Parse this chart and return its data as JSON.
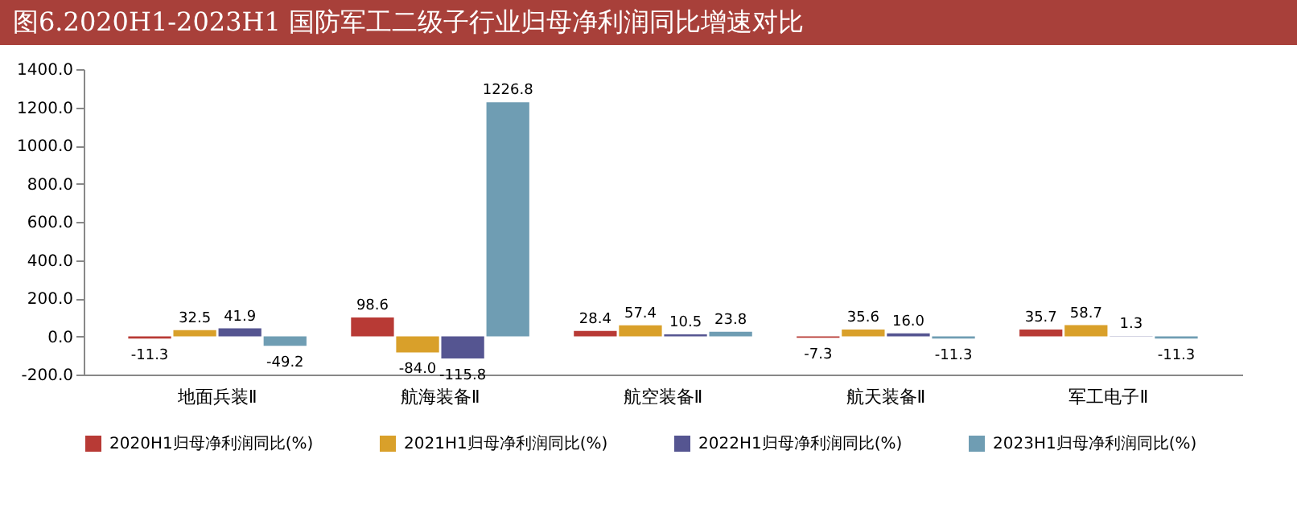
{
  "chart_data": {
    "type": "bar",
    "title": "图6.2020H1-2023H1 国防军工二级子行业归母净利润同比增速对比",
    "categories": [
      "地面兵装Ⅱ",
      "航海装备Ⅱ",
      "航空装备Ⅱ",
      "航天装备Ⅱ",
      "军工电子Ⅱ"
    ],
    "series": [
      {
        "name": "2020H1归母净利润同比(%)",
        "color": "#b83a35",
        "values": [
          -11.3,
          98.6,
          28.4,
          -7.3,
          35.7
        ],
        "value_labels": [
          "-11.3",
          "98.6",
          "28.4",
          "-7.3",
          "35.7"
        ]
      },
      {
        "name": "2021H1归母净利润同比(%)",
        "color": "#d9a02a",
        "values": [
          32.5,
          -84.0,
          57.4,
          35.6,
          58.7
        ],
        "value_labels": [
          "32.5",
          "-84.0",
          "57.4",
          "35.6",
          "58.7"
        ]
      },
      {
        "name": "2022H1归母净利润同比(%)",
        "color": "#555591",
        "values": [
          41.9,
          -115.8,
          10.5,
          16.0,
          1.3
        ],
        "value_labels": [
          "41.9",
          "-115.8",
          "10.5",
          "16.0",
          "1.3"
        ]
      },
      {
        "name": "2023H1归母净利润同比(%)",
        "color": "#6f9db3",
        "values": [
          -49.2,
          1226.8,
          23.8,
          -11.3,
          -11.3
        ],
        "value_labels": [
          "-49.2",
          "1226.8",
          "23.8",
          "-11.3",
          "-11.3"
        ]
      }
    ],
    "ylim": [
      -200,
      1400
    ],
    "yticks": [
      {
        "value": -200,
        "label": "-200.0"
      },
      {
        "value": 0,
        "label": "0.0"
      },
      {
        "value": 200,
        "label": "200.0"
      },
      {
        "value": 400,
        "label": "400.0"
      },
      {
        "value": 600,
        "label": "600.0"
      },
      {
        "value": 800,
        "label": "800.0"
      },
      {
        "value": 1000,
        "label": "1000.0"
      },
      {
        "value": 1200,
        "label": "1200.0"
      },
      {
        "value": 1400,
        "label": "1400.0"
      }
    ],
    "grid": false,
    "legend": "bottom"
  }
}
